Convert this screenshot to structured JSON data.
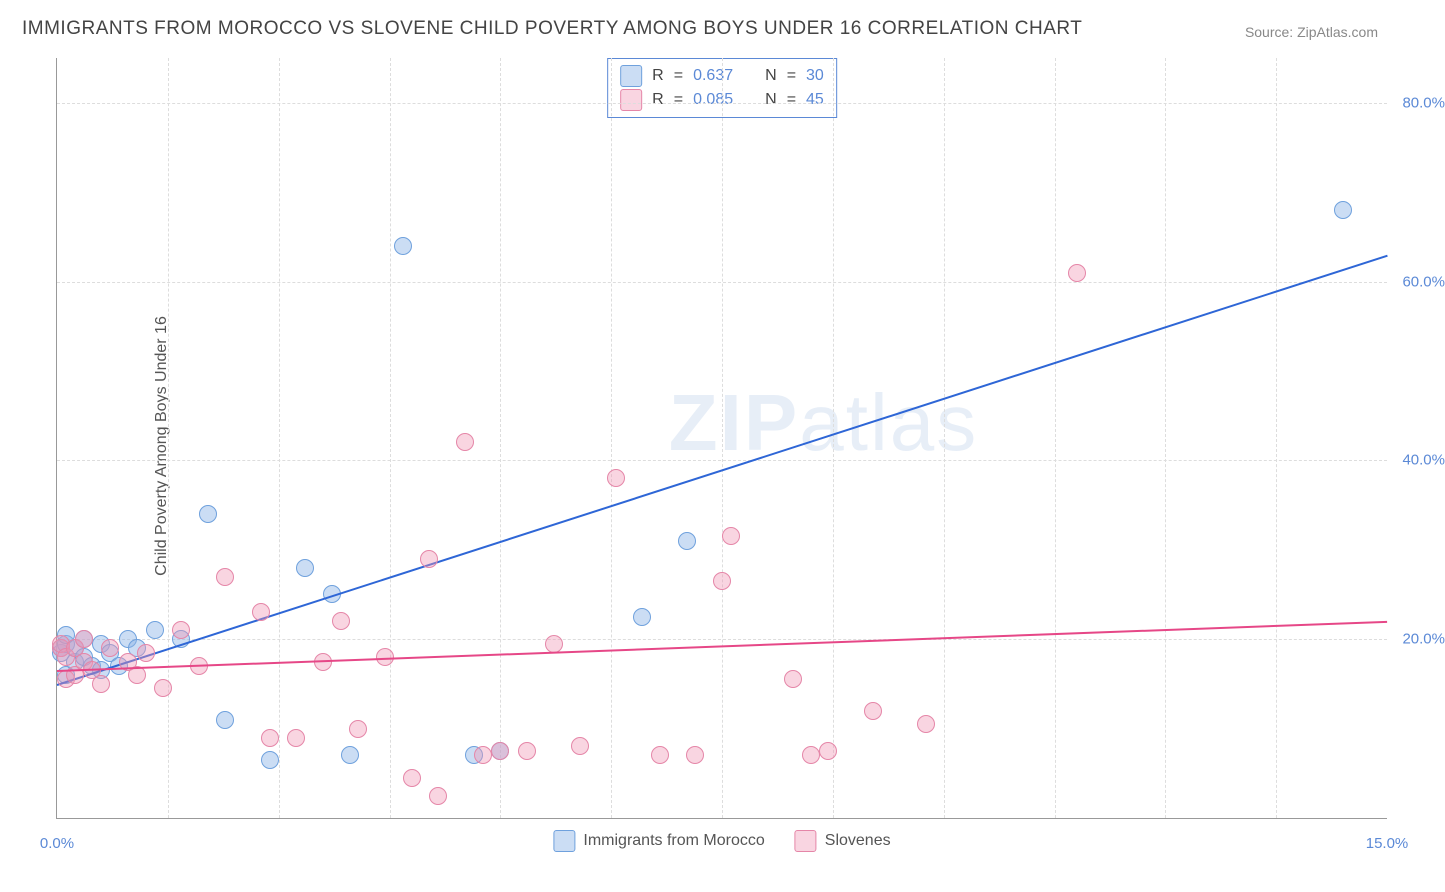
{
  "title": "IMMIGRANTS FROM MOROCCO VS SLOVENE CHILD POVERTY AMONG BOYS UNDER 16 CORRELATION CHART",
  "source": "Source: ZipAtlas.com",
  "watermark_a": "ZIP",
  "watermark_b": "atlas",
  "chart": {
    "type": "scatter-with-regression",
    "ylabel": "Child Poverty Among Boys Under 16",
    "xlim": [
      0.0,
      15.0
    ],
    "ylim": [
      0.0,
      85.0
    ],
    "x_ticks": [
      {
        "v": 0.0,
        "label": "0.0%"
      },
      {
        "v": 15.0,
        "label": "15.0%"
      }
    ],
    "y_ticks": [
      {
        "v": 20.0,
        "label": "20.0%"
      },
      {
        "v": 40.0,
        "label": "40.0%"
      },
      {
        "v": 60.0,
        "label": "60.0%"
      },
      {
        "v": 80.0,
        "label": "80.0%"
      }
    ],
    "x_gridlines": [
      1.25,
      2.5,
      3.75,
      5.0,
      6.25,
      7.5,
      8.75,
      10.0,
      11.25,
      12.5,
      13.75
    ],
    "background_color": "#ffffff",
    "grid_color": "#dddddd",
    "axis_color": "#999999",
    "tick_label_color": "#5b89d6",
    "series": [
      {
        "name": "Immigrants from Morocco",
        "fill": "rgba(140,180,230,0.45)",
        "stroke": "#6fa1dd",
        "line_color": "#2e66d6",
        "radius": 8,
        "R": "0.637",
        "N": "30",
        "trend": {
          "x1": 0.0,
          "y1": 15.0,
          "x2": 15.0,
          "y2": 63.0
        },
        "points": [
          [
            0.05,
            18.5
          ],
          [
            0.05,
            19.0
          ],
          [
            0.1,
            16.0
          ],
          [
            0.1,
            19.5
          ],
          [
            0.1,
            20.5
          ],
          [
            0.2,
            17.5
          ],
          [
            0.2,
            19.0
          ],
          [
            0.3,
            18.0
          ],
          [
            0.3,
            20.0
          ],
          [
            0.4,
            17.0
          ],
          [
            0.5,
            16.5
          ],
          [
            0.5,
            19.5
          ],
          [
            0.6,
            18.5
          ],
          [
            0.7,
            17.0
          ],
          [
            0.8,
            20.0
          ],
          [
            0.9,
            19.0
          ],
          [
            1.1,
            21.0
          ],
          [
            1.4,
            20.0
          ],
          [
            1.7,
            34.0
          ],
          [
            1.9,
            11.0
          ],
          [
            2.4,
            6.5
          ],
          [
            2.8,
            28.0
          ],
          [
            3.1,
            25.0
          ],
          [
            3.3,
            7.0
          ],
          [
            3.9,
            64.0
          ],
          [
            4.7,
            7.0
          ],
          [
            5.0,
            7.5
          ],
          [
            6.6,
            22.5
          ],
          [
            7.1,
            31.0
          ],
          [
            14.5,
            68.0
          ]
        ]
      },
      {
        "name": "Slovenes",
        "fill": "rgba(240,150,180,0.40)",
        "stroke": "#e586a8",
        "line_color": "#e64787",
        "radius": 8,
        "R": "0.085",
        "N": "45",
        "trend": {
          "x1": 0.0,
          "y1": 16.5,
          "x2": 15.0,
          "y2": 22.0
        },
        "points": [
          [
            0.05,
            19.0
          ],
          [
            0.05,
            19.5
          ],
          [
            0.1,
            15.5
          ],
          [
            0.1,
            18.0
          ],
          [
            0.2,
            16.0
          ],
          [
            0.2,
            19.0
          ],
          [
            0.3,
            17.5
          ],
          [
            0.3,
            20.0
          ],
          [
            0.4,
            16.5
          ],
          [
            0.5,
            15.0
          ],
          [
            0.6,
            19.0
          ],
          [
            0.8,
            17.5
          ],
          [
            0.9,
            16.0
          ],
          [
            1.0,
            18.5
          ],
          [
            1.2,
            14.5
          ],
          [
            1.4,
            21.0
          ],
          [
            1.6,
            17.0
          ],
          [
            1.9,
            27.0
          ],
          [
            2.3,
            23.0
          ],
          [
            2.4,
            9.0
          ],
          [
            2.7,
            9.0
          ],
          [
            3.0,
            17.5
          ],
          [
            3.2,
            22.0
          ],
          [
            3.4,
            10.0
          ],
          [
            3.7,
            18.0
          ],
          [
            4.0,
            4.5
          ],
          [
            4.2,
            29.0
          ],
          [
            4.3,
            2.5
          ],
          [
            4.6,
            42.0
          ],
          [
            4.8,
            7.0
          ],
          [
            5.0,
            7.5
          ],
          [
            5.3,
            7.5
          ],
          [
            5.6,
            19.5
          ],
          [
            5.9,
            8.0
          ],
          [
            6.3,
            38.0
          ],
          [
            6.8,
            7.0
          ],
          [
            7.2,
            7.0
          ],
          [
            7.5,
            26.5
          ],
          [
            7.6,
            31.5
          ],
          [
            8.3,
            15.5
          ],
          [
            8.5,
            7.0
          ],
          [
            8.7,
            7.5
          ],
          [
            9.2,
            12.0
          ],
          [
            9.8,
            10.5
          ],
          [
            11.5,
            61.0
          ]
        ]
      }
    ],
    "legend_labels": {
      "r_label": "R",
      "n_label": "N",
      "eq": "="
    },
    "bottom_legend": [
      {
        "series": 0,
        "label": "Immigrants from Morocco"
      },
      {
        "series": 1,
        "label": "Slovenes"
      }
    ]
  }
}
